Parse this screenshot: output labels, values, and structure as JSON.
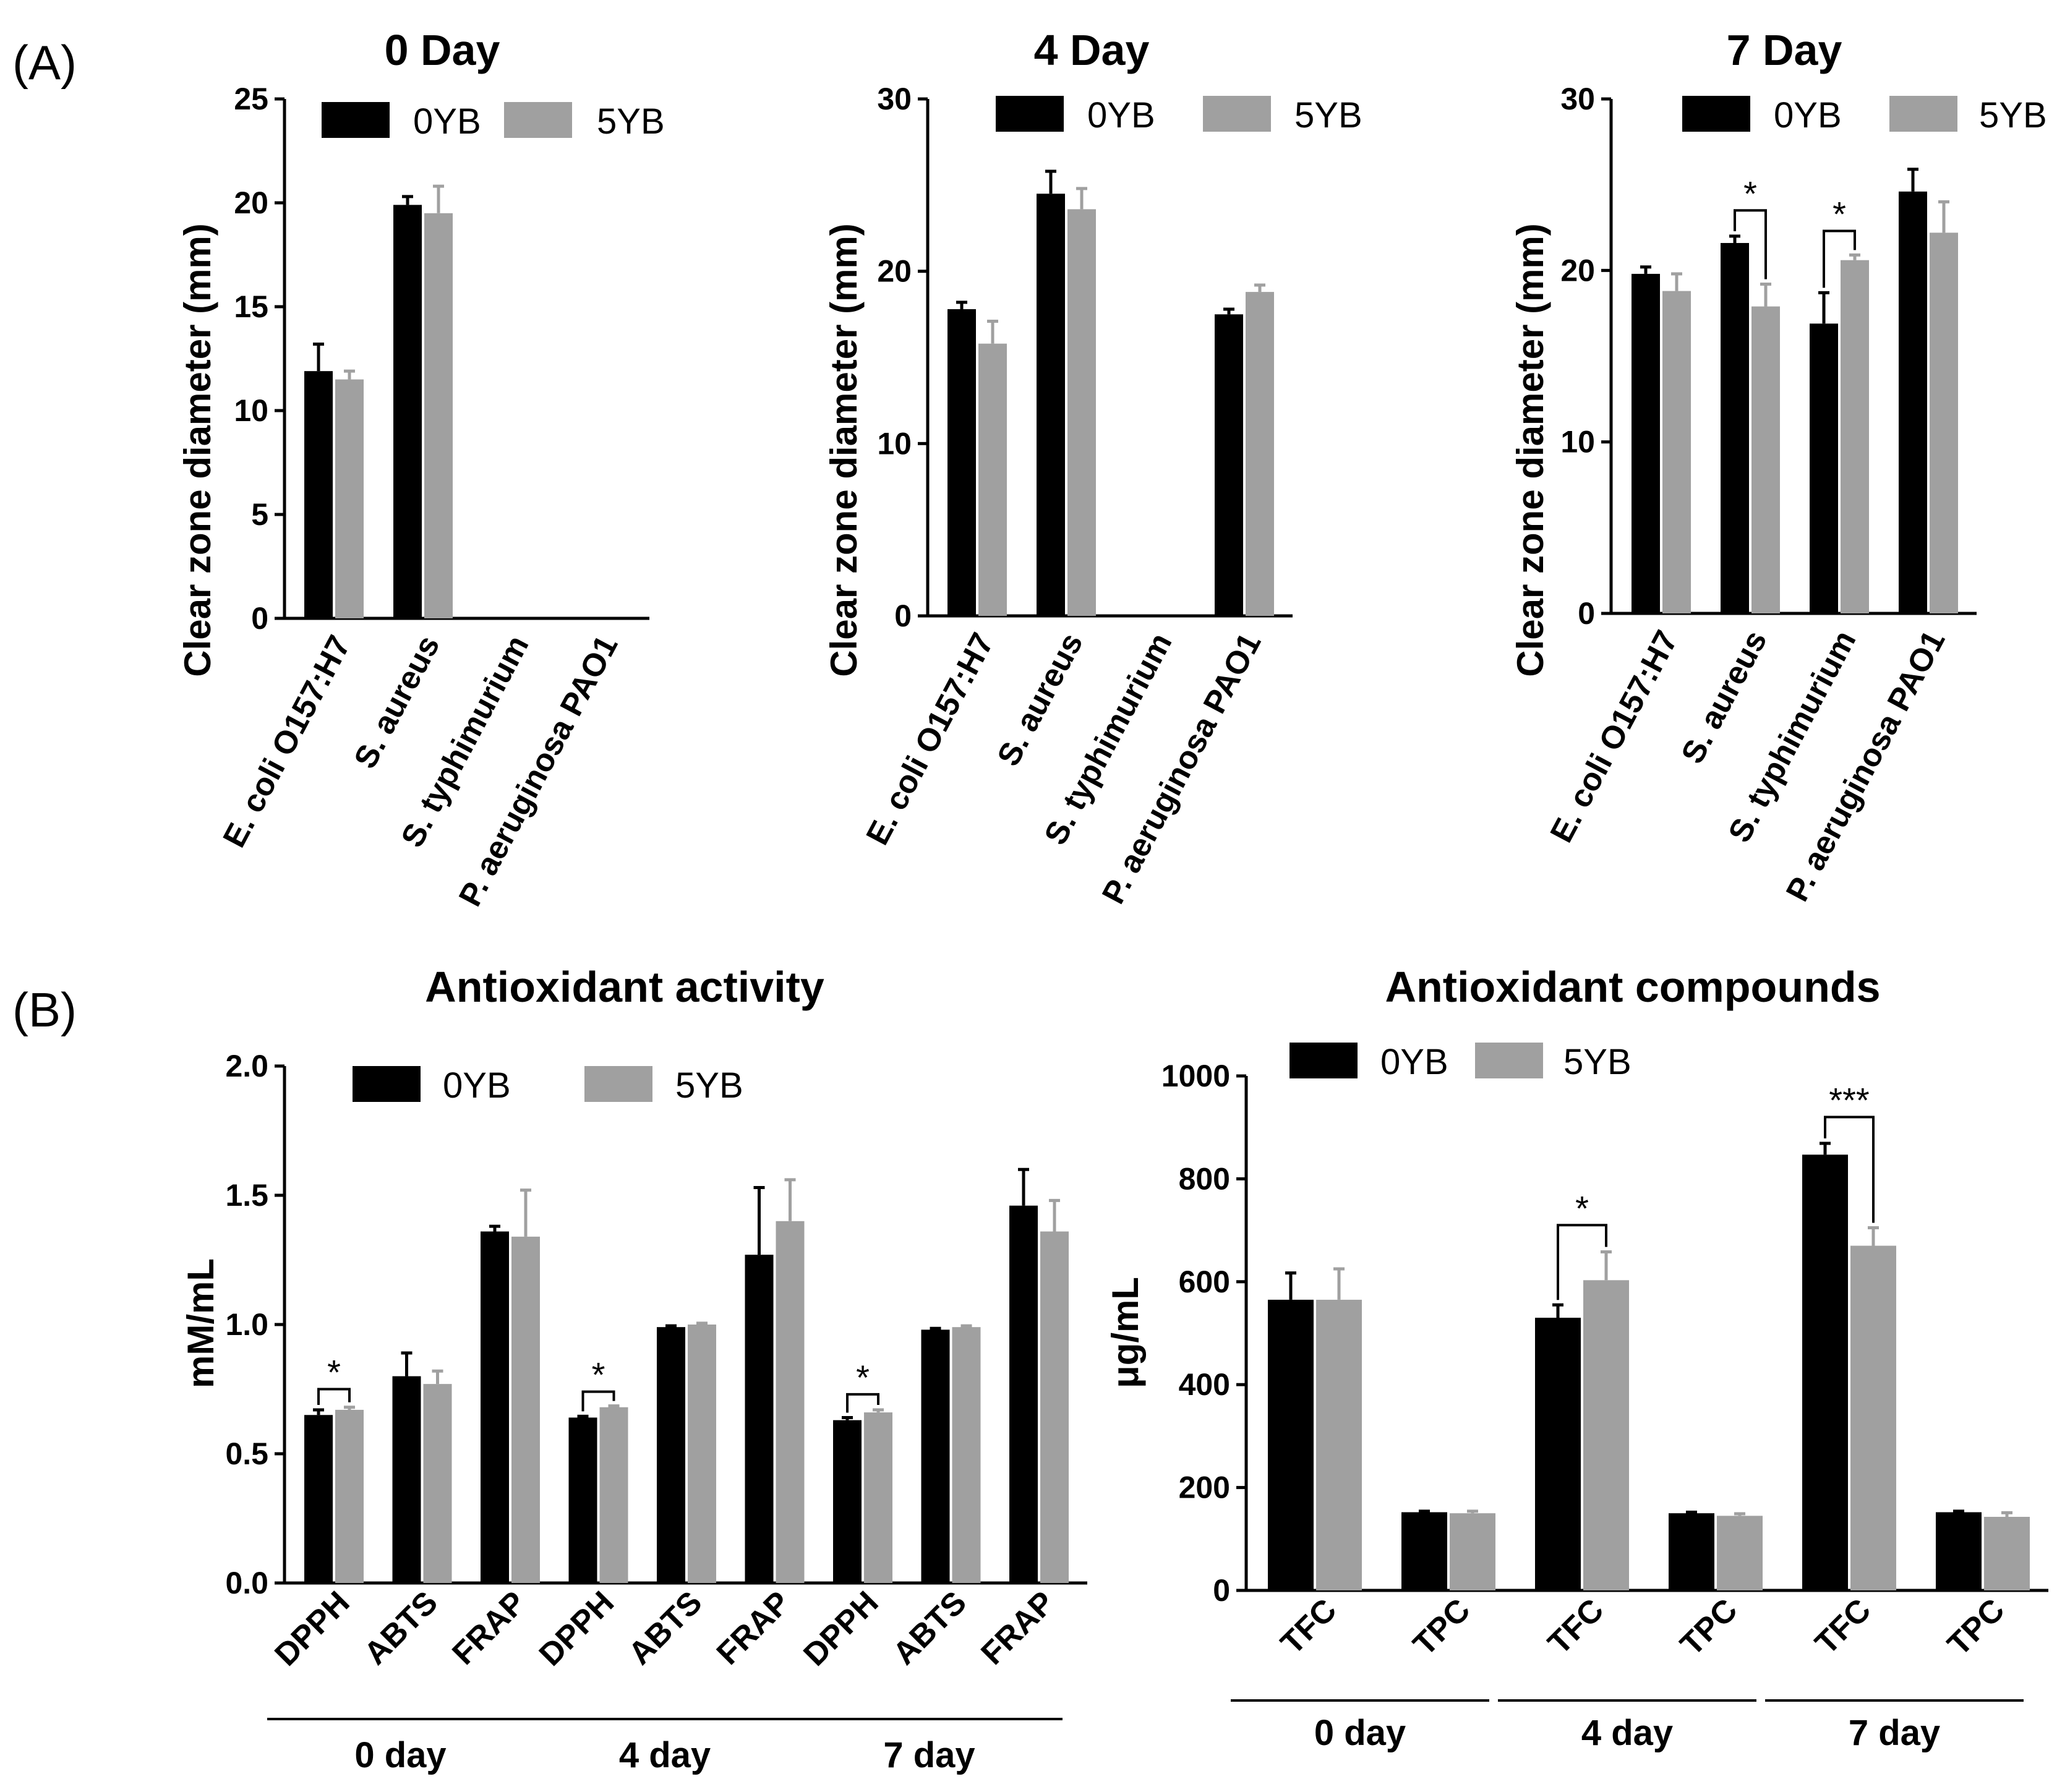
{
  "panel_labels": [
    "(A)",
    "(B)"
  ],
  "colors": {
    "s0": "#000000",
    "s1": "#a0a0a0",
    "axis": "#000000"
  },
  "chart_data": [
    {
      "type": "bar",
      "title": "0 Day",
      "ylabel": "Clear zone diameter (mm)",
      "categories": [
        "E. coli O157:H7",
        "S. aureus",
        "S. typhimurium",
        "P. aeruginosa PAO1"
      ],
      "ylim": [
        0,
        25
      ],
      "yticks": [
        "0",
        "5",
        "10",
        "15",
        "20",
        "25"
      ],
      "series": [
        {
          "name": "0YB",
          "values": [
            11.9,
            19.9,
            0,
            0
          ],
          "errors": [
            1.3,
            0.4,
            0,
            0
          ]
        },
        {
          "name": "5YB",
          "values": [
            11.5,
            19.5,
            0,
            0
          ],
          "errors": [
            0.4,
            1.3,
            0,
            0
          ]
        }
      ],
      "significance": []
    },
    {
      "type": "bar",
      "title": "4 Day",
      "ylabel": "Clear zone diameter (mm)",
      "categories": [
        "E. coli O157:H7",
        "S. aureus",
        "S. typhimurium",
        "P. aeruginosa PAO1"
      ],
      "ylim": [
        0,
        30
      ],
      "yticks": [
        "0",
        "10",
        "20",
        "30"
      ],
      "series": [
        {
          "name": "0YB",
          "values": [
            17.8,
            24.5,
            0,
            17.5
          ],
          "errors": [
            0.4,
            1.3,
            0,
            0.3
          ]
        },
        {
          "name": "5YB",
          "values": [
            15.8,
            23.6,
            0,
            18.8
          ],
          "errors": [
            1.3,
            1.2,
            0,
            0.4
          ]
        }
      ],
      "significance": []
    },
    {
      "type": "bar",
      "title": "7 Day",
      "ylabel": "Clear zone diameter (mm)",
      "categories": [
        "E. coli O157:H7",
        "S. aureus",
        "S. typhimurium",
        "P. aeruginosa PAO1"
      ],
      "ylim": [
        0,
        30
      ],
      "yticks": [
        "0",
        "10",
        "20",
        "30"
      ],
      "series": [
        {
          "name": "0YB",
          "values": [
            19.8,
            21.6,
            16.9,
            24.6
          ],
          "errors": [
            0.4,
            0.4,
            1.8,
            1.3
          ]
        },
        {
          "name": "5YB",
          "values": [
            18.8,
            17.9,
            20.6,
            22.2
          ],
          "errors": [
            1.0,
            1.3,
            0.3,
            1.8
          ]
        }
      ],
      "significance": [
        {
          "category": 1,
          "label": "*",
          "y": 23.5
        },
        {
          "category": 2,
          "label": "*",
          "y": 22.3
        }
      ]
    },
    {
      "type": "bar",
      "title": "Antioxidant activity",
      "ylabel": "mM/mL",
      "categories": [
        "DPPH",
        "ABTS",
        "FRAP",
        "DPPH",
        "ABTS",
        "FRAP",
        "DPPH",
        "ABTS",
        "FRAP"
      ],
      "groups": [
        {
          "label": "0 day",
          "from": 0,
          "to": 2
        },
        {
          "label": "4 day",
          "from": 3,
          "to": 5
        },
        {
          "label": "7 day",
          "from": 6,
          "to": 8
        }
      ],
      "ylim": [
        0,
        2.0
      ],
      "yticks": [
        "0.0",
        "0.5",
        "1.0",
        "1.5",
        "2.0"
      ],
      "series": [
        {
          "name": "0YB",
          "values": [
            0.65,
            0.8,
            1.36,
            0.64,
            0.99,
            1.27,
            0.63,
            0.98,
            1.46
          ],
          "errors": [
            0.02,
            0.09,
            0.02,
            0.005,
            0.005,
            0.26,
            0.01,
            0.005,
            0.14
          ]
        },
        {
          "name": "5YB",
          "values": [
            0.67,
            0.77,
            1.34,
            0.68,
            1.0,
            1.4,
            0.66,
            0.99,
            1.36
          ],
          "errors": [
            0.01,
            0.05,
            0.18,
            0.005,
            0.005,
            0.16,
            0.01,
            0.005,
            0.12
          ]
        }
      ],
      "significance": [
        {
          "category": 0,
          "label": "*",
          "y": 0.75
        },
        {
          "category": 3,
          "label": "*",
          "y": 0.74
        },
        {
          "category": 6,
          "label": "*",
          "y": 0.73
        }
      ]
    },
    {
      "type": "bar",
      "title": "Antioxidant compounds",
      "ylabel": "μg/mL",
      "categories": [
        "TFC",
        "TPC",
        "TFC",
        "TPC",
        "TFC",
        "TPC"
      ],
      "groups": [
        {
          "label": "0 day",
          "from": 0,
          "to": 1
        },
        {
          "label": "4 day",
          "from": 2,
          "to": 3
        },
        {
          "label": "7 day",
          "from": 4,
          "to": 5
        }
      ],
      "ylim": [
        0,
        1000
      ],
      "yticks": [
        "0",
        "200",
        "400",
        "600",
        "800",
        "1000"
      ],
      "series": [
        {
          "name": "0YB",
          "values": [
            565,
            152,
            530,
            150,
            847,
            152
          ],
          "errors": [
            52,
            2,
            25,
            2,
            22,
            2
          ]
        },
        {
          "name": "5YB",
          "values": [
            565,
            150,
            603,
            145,
            670,
            143
          ],
          "errors": [
            60,
            4,
            55,
            4,
            35,
            8
          ]
        }
      ],
      "significance": [
        {
          "category": 2,
          "label": "*",
          "y": 710
        },
        {
          "category": 4,
          "label": "***",
          "y": 920
        }
      ]
    }
  ]
}
